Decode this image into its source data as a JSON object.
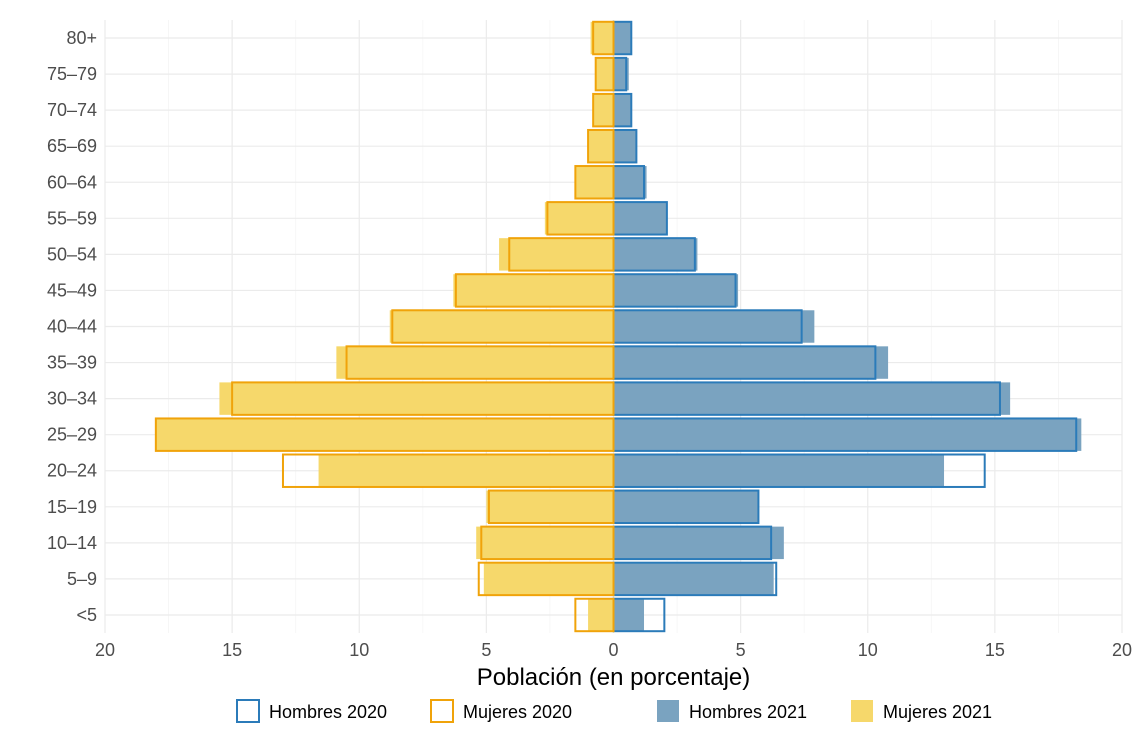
{
  "chart_data": {
    "type": "bar",
    "orientation": "horizontal",
    "layout": "population-pyramid",
    "xlabel": "Población (en porcentaje)",
    "ylabel": "",
    "xlim": [
      -20,
      20
    ],
    "xticks": [
      -20,
      -15,
      -10,
      -5,
      0,
      5,
      10,
      15,
      20
    ],
    "xtick_labels": [
      "20",
      "15",
      "10",
      "5",
      "0",
      "5",
      "10",
      "15",
      "20"
    ],
    "grid": true,
    "legend_position": "bottom",
    "categories": [
      "<5",
      "5–9",
      "10–14",
      "15–19",
      "20–24",
      "25–29",
      "30–34",
      "35–39",
      "40–44",
      "45–49",
      "50–54",
      "55–59",
      "60–64",
      "65–69",
      "70–74",
      "75–79",
      "80+"
    ],
    "series": [
      {
        "name": "Hombres 2020",
        "style": "outline",
        "side": "right",
        "color": "#2b7bb9",
        "values": [
          2.0,
          6.4,
          6.2,
          5.7,
          14.6,
          18.2,
          15.2,
          10.3,
          7.4,
          4.8,
          3.2,
          2.1,
          1.2,
          0.9,
          0.7,
          0.5,
          0.7
        ]
      },
      {
        "name": "Mujeres 2020",
        "style": "outline",
        "side": "left",
        "color": "#f0a30a",
        "values": [
          1.5,
          5.3,
          5.2,
          4.9,
          13.0,
          18.0,
          15.0,
          10.5,
          8.7,
          6.2,
          4.1,
          2.6,
          1.5,
          1.0,
          0.8,
          0.7,
          0.8
        ]
      },
      {
        "name": "Hombres 2021",
        "style": "filled",
        "side": "right",
        "color": "#7aa3c0",
        "values": [
          1.2,
          6.3,
          6.7,
          5.7,
          13.0,
          18.4,
          15.6,
          10.8,
          7.9,
          4.9,
          3.3,
          2.1,
          1.3,
          0.9,
          0.7,
          0.6,
          0.7
        ]
      },
      {
        "name": "Mujeres 2021",
        "style": "filled",
        "side": "left",
        "color": "#f6d86b",
        "values": [
          1.0,
          5.1,
          5.4,
          5.0,
          11.6,
          18.0,
          15.5,
          10.9,
          8.8,
          6.3,
          4.5,
          2.7,
          1.5,
          1.0,
          0.8,
          0.7,
          0.9
        ]
      }
    ]
  }
}
